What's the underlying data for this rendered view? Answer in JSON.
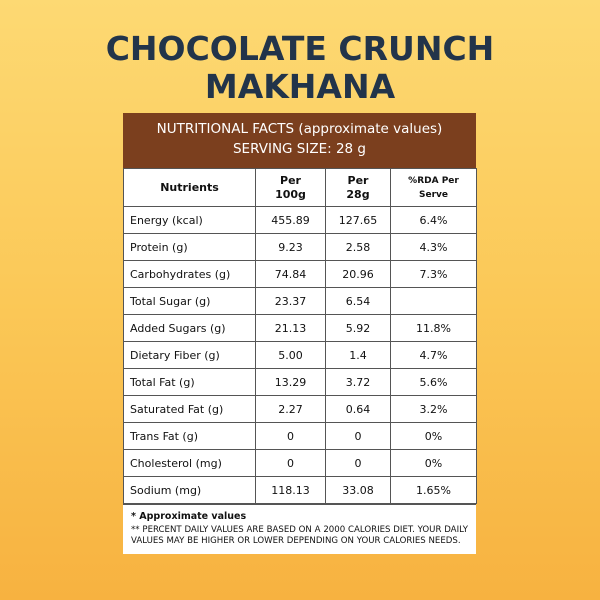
{
  "title": [
    "CHOCOLATE CRUNCH",
    "MAKHANA"
  ],
  "header": {
    "line1": "NUTRITIONAL FACTS (approximate values)",
    "line2": "SERVING SIZE: 28 g"
  },
  "columns": [
    "Nutrients",
    "Per 100g",
    "Per 28g",
    "%RDA Per Serve"
  ],
  "rows": [
    {
      "name": "Energy (kcal)",
      "per100": "455.89",
      "per28": "127.65",
      "rda": "6.4%"
    },
    {
      "name": "Protein (g)",
      "per100": "9.23",
      "per28": "2.58",
      "rda": "4.3%"
    },
    {
      "name": "Carbohydrates (g)",
      "per100": "74.84",
      "per28": "20.96",
      "rda": "7.3%"
    },
    {
      "name": "Total Sugar (g)",
      "per100": "23.37",
      "per28": "6.54",
      "rda": ""
    },
    {
      "name": "Added Sugars (g)",
      "per100": "21.13",
      "per28": "5.92",
      "rda": "11.8%"
    },
    {
      "name": "Dietary Fiber (g)",
      "per100": "5.00",
      "per28": "1.4",
      "rda": "4.7%"
    },
    {
      "name": "Total Fat (g)",
      "per100": "13.29",
      "per28": "3.72",
      "rda": "5.6%"
    },
    {
      "name": "Saturated Fat (g)",
      "per100": "2.27",
      "per28": "0.64",
      "rda": "3.2%"
    },
    {
      "name": "Trans Fat (g)",
      "per100": "0",
      "per28": "0",
      "rda": "0%"
    },
    {
      "name": "Cholesterol (mg)",
      "per100": "0",
      "per28": "0",
      "rda": "0%"
    },
    {
      "name": "Sodium  (mg)",
      "per100": "118.13",
      "per28": "33.08",
      "rda": "1.65%"
    }
  ],
  "footnote": {
    "approx": "* Approximate values",
    "daily": "** PERCENT DAILY VALUES ARE BASED ON A 2000 CALORIES DIET. YOUR DAILY VALUES MAY BE HIGHER OR LOWER DEPENDING ON YOUR CALORIES NEEDS."
  },
  "colors": {
    "title": "#22344a",
    "header_bg": "#7b3f1e",
    "background": "#fbc857"
  }
}
